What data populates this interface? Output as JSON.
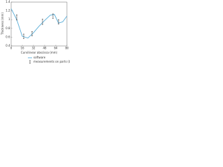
{
  "chart_data": {
    "type": "line",
    "x_label": "Curvilinear abscissa (mm)",
    "y_label": "Thickness (mm)",
    "xlim": [
      0,
      80
    ],
    "xticks": [
      0,
      16,
      32,
      48,
      64,
      80
    ],
    "ylim": [
      0.4,
      1.4
    ],
    "yticks": [
      0.4,
      0.6,
      0.8,
      1.0,
      1.2,
      1.4
    ],
    "legend": "bottom",
    "series": [
      {
        "name": "software",
        "color": "#5aaed8",
        "style": "line",
        "x": [
          0,
          8,
          16,
          24,
          32,
          40,
          48,
          56,
          62,
          68,
          74,
          80
        ],
        "values": [
          1.25,
          1.0,
          0.62,
          0.58,
          0.7,
          0.85,
          0.98,
          1.1,
          1.12,
          0.92,
          0.95,
          1.08
        ]
      },
      {
        "name": "measurements on parts (bars)",
        "color": "#222222",
        "style": "errorbar",
        "x": [
          8,
          18,
          30,
          45,
          60,
          68
        ],
        "values": [
          1.05,
          0.62,
          0.68,
          0.95,
          1.08,
          0.95
        ],
        "errors": [
          0.06,
          0.05,
          0.05,
          0.06,
          0.05,
          0.05
        ]
      }
    ]
  }
}
